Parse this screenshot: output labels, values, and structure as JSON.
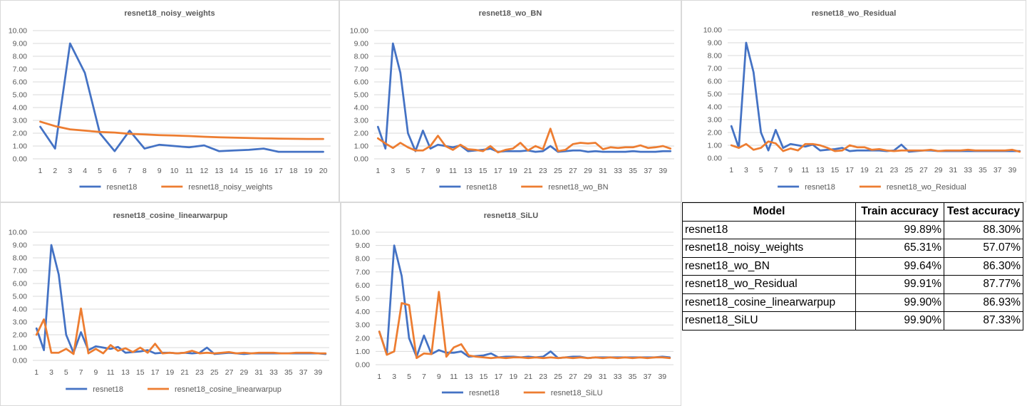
{
  "colors": {
    "series1": "#4472C4",
    "series2": "#ED7D31",
    "grid": "#D9D9D9",
    "text": "#595959"
  },
  "chart_data": [
    {
      "type": "line",
      "title": "resnet18_noisy_weights",
      "ylim": [
        0,
        10
      ],
      "y_ticks": [
        "0.00",
        "1.00",
        "2.00",
        "3.00",
        "4.00",
        "5.00",
        "6.00",
        "7.00",
        "8.00",
        "9.00",
        "10.00"
      ],
      "x": [
        1,
        2,
        3,
        4,
        5,
        6,
        7,
        8,
        9,
        10,
        11,
        12,
        13,
        14,
        15,
        16,
        17,
        18,
        19,
        20
      ],
      "x_tick_labels": [
        "1",
        "2",
        "3",
        "4",
        "5",
        "6",
        "7",
        "8",
        "9",
        "10",
        "11",
        "12",
        "13",
        "14",
        "15",
        "16",
        "17",
        "18",
        "19",
        "20"
      ],
      "grid": true,
      "legend": "bottom",
      "series": [
        {
          "name": "resnet18",
          "values": [
            2.5,
            0.8,
            9.0,
            6.7,
            2.0,
            0.6,
            2.2,
            0.8,
            1.1,
            1.0,
            0.9,
            1.05,
            0.6,
            0.65,
            0.7,
            0.8,
            0.55,
            0.55,
            0.55,
            0.55
          ]
        },
        {
          "name": "resnet18_noisy_weights",
          "values": [
            2.9,
            2.55,
            2.3,
            2.2,
            2.1,
            2.05,
            1.95,
            1.9,
            1.85,
            1.82,
            1.78,
            1.72,
            1.68,
            1.65,
            1.62,
            1.6,
            1.58,
            1.56,
            1.55,
            1.55
          ]
        }
      ]
    },
    {
      "type": "line",
      "title": "resnet18_wo_BN",
      "ylim": [
        0,
        10
      ],
      "y_ticks": [
        "0.00",
        "1.00",
        "2.00",
        "3.00",
        "4.00",
        "5.00",
        "6.00",
        "7.00",
        "8.00",
        "9.00",
        "10.00"
      ],
      "x": [
        1,
        2,
        3,
        4,
        5,
        6,
        7,
        8,
        9,
        10,
        11,
        12,
        13,
        14,
        15,
        16,
        17,
        18,
        19,
        20,
        21,
        22,
        23,
        24,
        25,
        26,
        27,
        28,
        29,
        30,
        31,
        32,
        33,
        34,
        35,
        36,
        37,
        38,
        39,
        40
      ],
      "x_tick_labels": [
        "1",
        "3",
        "5",
        "7",
        "9",
        "11",
        "13",
        "15",
        "17",
        "19",
        "21",
        "23",
        "25",
        "27",
        "29",
        "31",
        "33",
        "35",
        "37",
        "39"
      ],
      "grid": true,
      "legend": "bottom",
      "series": [
        {
          "name": "resnet18",
          "values": [
            2.5,
            0.8,
            9.0,
            6.7,
            2.0,
            0.6,
            2.2,
            0.8,
            1.1,
            1.0,
            0.9,
            1.05,
            0.6,
            0.65,
            0.7,
            0.8,
            0.55,
            0.6,
            0.6,
            0.6,
            0.65,
            0.55,
            0.6,
            1.0,
            0.55,
            0.6,
            0.65,
            0.65,
            0.55,
            0.6,
            0.55,
            0.55,
            0.55,
            0.55,
            0.6,
            0.55,
            0.55,
            0.55,
            0.6,
            0.6
          ]
        },
        {
          "name": "resnet18_wo_BN",
          "values": [
            1.6,
            1.2,
            0.85,
            1.25,
            0.9,
            0.65,
            0.65,
            1.0,
            1.8,
            1.0,
            0.7,
            1.1,
            0.75,
            0.7,
            0.6,
            1.0,
            0.5,
            0.7,
            0.8,
            1.25,
            0.65,
            1.0,
            0.75,
            2.35,
            0.6,
            0.7,
            1.15,
            1.25,
            1.2,
            1.25,
            0.75,
            0.9,
            0.85,
            0.9,
            0.9,
            1.05,
            0.85,
            0.9,
            1.0,
            0.8
          ]
        }
      ]
    },
    {
      "type": "line",
      "title": "resnet18_wo_Residual",
      "ylim": [
        0,
        10
      ],
      "y_ticks": [
        "0.00",
        "1.00",
        "2.00",
        "3.00",
        "4.00",
        "5.00",
        "6.00",
        "7.00",
        "8.00",
        "9.00",
        "10.00"
      ],
      "x": [
        1,
        2,
        3,
        4,
        5,
        6,
        7,
        8,
        9,
        10,
        11,
        12,
        13,
        14,
        15,
        16,
        17,
        18,
        19,
        20,
        21,
        22,
        23,
        24,
        25,
        26,
        27,
        28,
        29,
        30,
        31,
        32,
        33,
        34,
        35,
        36,
        37,
        38,
        39,
        40
      ],
      "x_tick_labels": [
        "1",
        "3",
        "5",
        "7",
        "9",
        "11",
        "13",
        "15",
        "17",
        "19",
        "21",
        "23",
        "25",
        "27",
        "29",
        "31",
        "33",
        "35",
        "37",
        "39"
      ],
      "grid": true,
      "legend": "bottom",
      "series": [
        {
          "name": "resnet18",
          "values": [
            2.5,
            0.8,
            9.0,
            6.7,
            2.0,
            0.6,
            2.2,
            0.8,
            1.1,
            1.0,
            0.9,
            1.05,
            0.6,
            0.65,
            0.7,
            0.8,
            0.55,
            0.6,
            0.6,
            0.6,
            0.6,
            0.55,
            0.6,
            1.05,
            0.5,
            0.55,
            0.6,
            0.6,
            0.55,
            0.55,
            0.55,
            0.55,
            0.55,
            0.55,
            0.55,
            0.55,
            0.55,
            0.55,
            0.55,
            0.55
          ]
        },
        {
          "name": "resnet18_wo_Residual",
          "values": [
            1.0,
            0.8,
            1.1,
            0.65,
            0.8,
            1.3,
            1.15,
            0.55,
            0.75,
            0.6,
            1.1,
            1.1,
            1.0,
            0.8,
            0.55,
            0.6,
            1.0,
            0.85,
            0.85,
            0.65,
            0.7,
            0.6,
            0.55,
            0.6,
            0.6,
            0.6,
            0.6,
            0.65,
            0.55,
            0.6,
            0.6,
            0.6,
            0.65,
            0.6,
            0.6,
            0.6,
            0.6,
            0.6,
            0.65,
            0.5
          ]
        }
      ]
    },
    {
      "type": "line",
      "title": "resnet18_cosine_linearwarpup",
      "ylim": [
        0,
        10
      ],
      "y_ticks": [
        "0.00",
        "1.00",
        "2.00",
        "3.00",
        "4.00",
        "5.00",
        "6.00",
        "7.00",
        "8.00",
        "9.00",
        "10.00"
      ],
      "x": [
        1,
        2,
        3,
        4,
        5,
        6,
        7,
        8,
        9,
        10,
        11,
        12,
        13,
        14,
        15,
        16,
        17,
        18,
        19,
        20,
        21,
        22,
        23,
        24,
        25,
        26,
        27,
        28,
        29,
        30,
        31,
        32,
        33,
        34,
        35,
        36,
        37,
        38,
        39,
        40
      ],
      "x_tick_labels": [
        "1",
        "3",
        "5",
        "7",
        "9",
        "11",
        "13",
        "15",
        "17",
        "19",
        "21",
        "23",
        "25",
        "27",
        "29",
        "31",
        "33",
        "35",
        "37",
        "39"
      ],
      "grid": true,
      "legend": "bottom",
      "series": [
        {
          "name": "resnet18",
          "values": [
            2.5,
            0.8,
            9.0,
            6.7,
            2.0,
            0.6,
            2.2,
            0.8,
            1.1,
            1.0,
            0.9,
            1.05,
            0.6,
            0.65,
            0.7,
            0.8,
            0.55,
            0.6,
            0.6,
            0.55,
            0.6,
            0.55,
            0.6,
            1.0,
            0.5,
            0.55,
            0.6,
            0.55,
            0.5,
            0.55,
            0.55,
            0.55,
            0.55,
            0.55,
            0.55,
            0.55,
            0.55,
            0.55,
            0.55,
            0.5
          ]
        },
        {
          "name": "resnet18_cosine_linearwarpup",
          "values": [
            2.0,
            3.2,
            0.6,
            0.6,
            0.9,
            0.5,
            4.05,
            0.55,
            0.9,
            0.55,
            1.2,
            0.75,
            0.95,
            0.65,
            1.0,
            0.6,
            1.3,
            0.55,
            0.6,
            0.55,
            0.6,
            0.75,
            0.55,
            0.6,
            0.55,
            0.6,
            0.65,
            0.55,
            0.6,
            0.55,
            0.6,
            0.6,
            0.6,
            0.55,
            0.55,
            0.6,
            0.6,
            0.6,
            0.55,
            0.55
          ]
        }
      ]
    },
    {
      "type": "line",
      "title": "resnet18_SiLU",
      "ylim": [
        0,
        10
      ],
      "y_ticks": [
        "0.00",
        "1.00",
        "2.00",
        "3.00",
        "4.00",
        "5.00",
        "6.00",
        "7.00",
        "8.00",
        "9.00",
        "10.00"
      ],
      "x": [
        1,
        2,
        3,
        4,
        5,
        6,
        7,
        8,
        9,
        10,
        11,
        12,
        13,
        14,
        15,
        16,
        17,
        18,
        19,
        20,
        21,
        22,
        23,
        24,
        25,
        26,
        27,
        28,
        29,
        30,
        31,
        32,
        33,
        34,
        35,
        36,
        37,
        38,
        39,
        40
      ],
      "x_tick_labels": [
        "1",
        "3",
        "5",
        "7",
        "9",
        "11",
        "13",
        "15",
        "17",
        "19",
        "21",
        "23",
        "25",
        "27",
        "29",
        "31",
        "33",
        "35",
        "37",
        "39"
      ],
      "grid": true,
      "legend": "bottom",
      "series": [
        {
          "name": "resnet18",
          "values": [
            2.5,
            0.8,
            9.0,
            6.7,
            2.0,
            0.6,
            2.2,
            0.8,
            1.1,
            0.9,
            0.9,
            1.0,
            0.6,
            0.65,
            0.7,
            0.85,
            0.55,
            0.6,
            0.6,
            0.55,
            0.6,
            0.55,
            0.6,
            1.0,
            0.5,
            0.55,
            0.6,
            0.6,
            0.5,
            0.55,
            0.55,
            0.55,
            0.55,
            0.55,
            0.55,
            0.55,
            0.55,
            0.55,
            0.6,
            0.55
          ]
        },
        {
          "name": "resnet18_SiLU",
          "values": [
            2.5,
            0.75,
            1.0,
            4.65,
            4.5,
            0.5,
            0.85,
            0.8,
            5.5,
            0.6,
            1.3,
            1.55,
            0.7,
            0.6,
            0.55,
            0.5,
            0.55,
            0.5,
            0.55,
            0.55,
            0.5,
            0.55,
            0.5,
            0.55,
            0.5,
            0.55,
            0.5,
            0.55,
            0.5,
            0.55,
            0.5,
            0.55,
            0.5,
            0.55,
            0.5,
            0.55,
            0.5,
            0.55,
            0.55,
            0.5
          ]
        }
      ]
    },
    {
      "type": "table",
      "columns": [
        "Model",
        "Train accuracy",
        "Test accuracy"
      ],
      "rows": [
        [
          "resnet18",
          "99.89%",
          "88.30%"
        ],
        [
          "resnet18_noisy_weights",
          "65.31%",
          "57.07%"
        ],
        [
          "resnet18_wo_BN",
          "99.64%",
          "86.30%"
        ],
        [
          "resnet18_wo_Residual",
          "99.91%",
          "87.77%"
        ],
        [
          "resnet18_cosine_linearwarpup",
          "99.90%",
          "86.93%"
        ],
        [
          "resnet18_SiLU",
          "99.90%",
          "87.33%"
        ]
      ]
    }
  ]
}
